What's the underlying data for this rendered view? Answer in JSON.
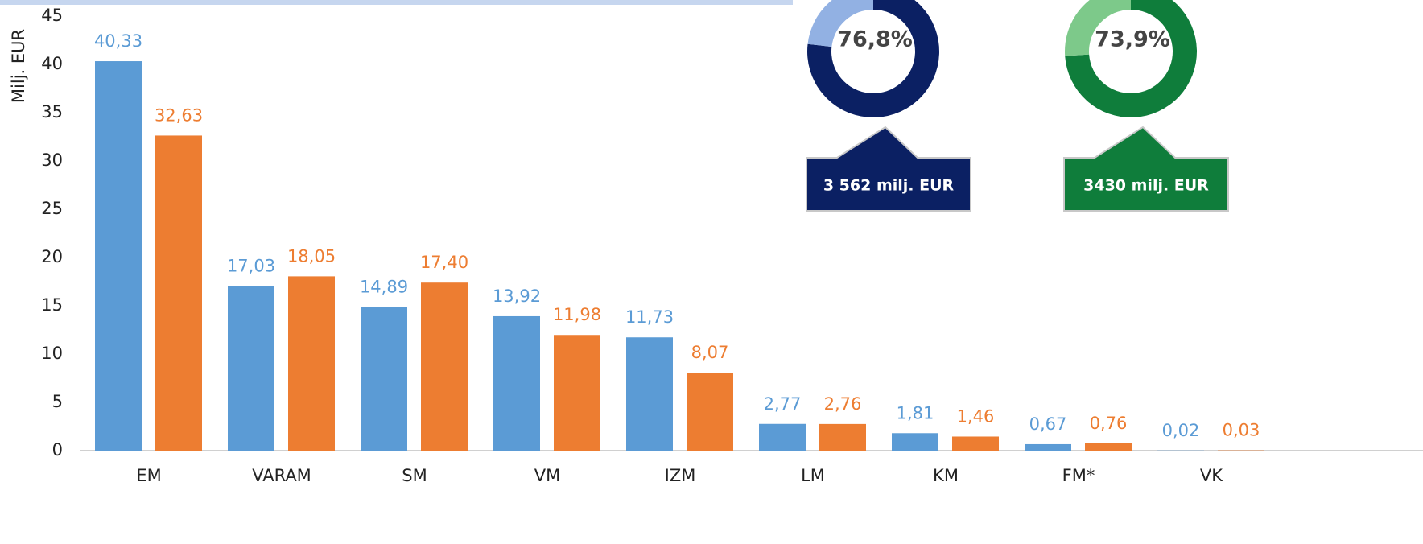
{
  "chart_data": [
    {
      "type": "bar",
      "ylabel": "Milj. EUR",
      "categories": [
        "EM",
        "VARAM",
        "SM",
        "VM",
        "IZM",
        "LM",
        "KM",
        "FM*",
        "VK"
      ],
      "series": [
        {
          "color": "#5b9bd5",
          "values": [
            40.33,
            17.03,
            14.89,
            13.92,
            11.73,
            2.77,
            1.81,
            0.67,
            0.02
          ],
          "value_labels": [
            "40,33",
            "17,03",
            "14,89",
            "13,92",
            "11,73",
            "2,77",
            "1,81",
            "0,67",
            "0,02"
          ]
        },
        {
          "color": "#ed7d31",
          "values": [
            32.63,
            18.05,
            17.4,
            11.98,
            8.07,
            2.76,
            1.46,
            0.76,
            0.03
          ],
          "value_labels": [
            "32,63",
            "18,05",
            "17,40",
            "11,98",
            "8,07",
            "2,76",
            "1,46",
            "0,76",
            "0,03"
          ]
        }
      ],
      "ylim": [
        0,
        45
      ],
      "yticks": [
        0,
        5,
        10,
        15,
        20,
        25,
        30,
        35,
        40,
        45
      ]
    },
    {
      "type": "pie",
      "values": [
        76.8,
        23.2
      ],
      "colors": [
        "#0b2063",
        "#92b1e3"
      ],
      "center_label": "76,8%",
      "annotation": "3 562 milj. EUR"
    },
    {
      "type": "pie",
      "values": [
        73.9,
        26.1
      ],
      "colors": [
        "#0f7d3b",
        "#7dc98a"
      ],
      "center_label": "73,9%",
      "annotation": "3430 milj. EUR"
    }
  ]
}
